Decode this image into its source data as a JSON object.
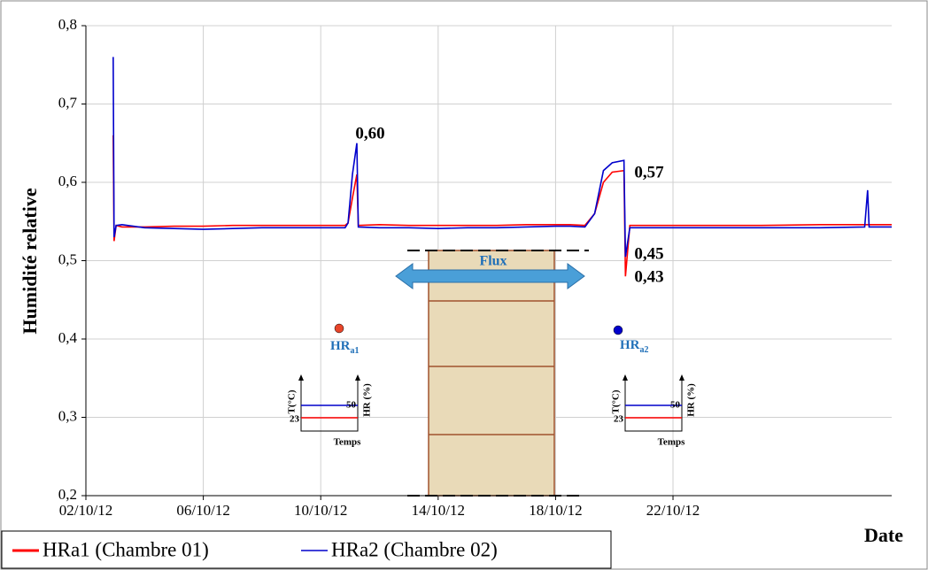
{
  "chart_data": {
    "type": "line",
    "y_label": "Humidité relative",
    "x_label": "Date",
    "x": [
      41184.93,
      41184.96,
      41185.03,
      41185.23,
      41186,
      41187,
      41188,
      41189,
      41190,
      41191,
      41192,
      41192.83,
      41192.93,
      41193.08,
      41193.23,
      41193.28,
      41194,
      41195,
      41196,
      41197,
      41198,
      41199,
      41200,
      41200.5,
      41201,
      41201.33,
      41201.63,
      41201.93,
      41202.33,
      41202.38,
      41202.53,
      41203,
      41205,
      41207,
      41209,
      41210.53,
      41210.63,
      41210.68,
      41211.45
    ],
    "series": [
      {
        "name": "HRa1 (Chambre 01)",
        "color": "#ff0000",
        "values": [
          0.66,
          0.525,
          0.545,
          0.543,
          0.543,
          0.544,
          0.544,
          0.545,
          0.545,
          0.545,
          0.545,
          0.545,
          0.548,
          0.58,
          0.61,
          0.545,
          0.546,
          0.545,
          0.545,
          0.545,
          0.545,
          0.546,
          0.546,
          0.546,
          0.545,
          0.56,
          0.6,
          0.613,
          0.615,
          0.48,
          0.545,
          0.545,
          0.545,
          0.545,
          0.546,
          0.546,
          0.546,
          0.546,
          0.546
        ]
      },
      {
        "name": "HRa2 (Chambre 02)",
        "color": "#0000cc",
        "values": [
          0.76,
          0.53,
          0.545,
          0.546,
          0.542,
          0.541,
          0.54,
          0.541,
          0.542,
          0.542,
          0.542,
          0.542,
          0.548,
          0.61,
          0.65,
          0.543,
          0.542,
          0.542,
          0.541,
          0.542,
          0.542,
          0.543,
          0.544,
          0.544,
          0.543,
          0.56,
          0.615,
          0.625,
          0.628,
          0.505,
          0.542,
          0.542,
          0.542,
          0.542,
          0.542,
          0.543,
          0.59,
          0.543,
          0.543
        ]
      }
    ],
    "xlim": [
      41184,
      41211.45
    ],
    "ylim": [
      0.2,
      0.8
    ],
    "xticks": [
      {
        "value": 41184,
        "label": "02/10/12"
      },
      {
        "value": 41188,
        "label": "06/10/12"
      },
      {
        "value": 41192,
        "label": "10/10/12"
      },
      {
        "value": 41196,
        "label": "14/10/12"
      },
      {
        "value": 41200,
        "label": "18/10/12"
      },
      {
        "value": 41204,
        "label": "22/10/12"
      }
    ],
    "yticks": [
      {
        "value": 0.2,
        "label": "0,2"
      },
      {
        "value": 0.3,
        "label": "0,3"
      },
      {
        "value": 0.4,
        "label": "0,4"
      },
      {
        "value": 0.5,
        "label": "0,5"
      },
      {
        "value": 0.6,
        "label": "0,6"
      },
      {
        "value": 0.7,
        "label": "0,7"
      },
      {
        "value": 0.8,
        "label": "0,8"
      }
    ],
    "grid": true,
    "legend": "bottom-left",
    "annotations": [
      "0,60",
      "0,57",
      "0,45",
      "0,43"
    ],
    "flux": "Flux",
    "points": [
      {
        "main": "HR",
        "sub": "a1"
      },
      {
        "main": "HR",
        "sub": "a2"
      }
    ],
    "inset": {
      "y_left": "T(°C)",
      "y_right": "HR (%)",
      "low": "23",
      "high": "50",
      "x": "Temps"
    }
  }
}
